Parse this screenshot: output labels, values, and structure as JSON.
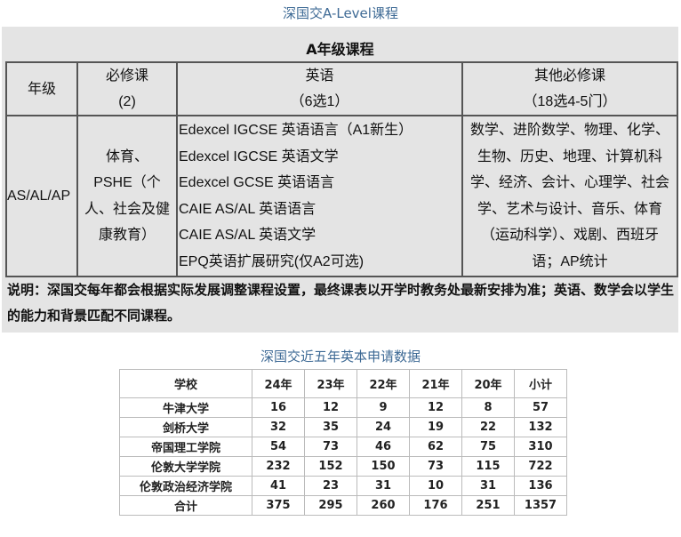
{
  "caption1": "深国交A-Level课程",
  "panel": {
    "title": "A年级课程",
    "headers": [
      {
        "line1": "年级",
        "line2": ""
      },
      {
        "line1": "必修课",
        "line2": "(2)"
      },
      {
        "line1": "英语",
        "line2": "（6选1）"
      },
      {
        "line1": "其他必修课",
        "line2": "（18选4-5门）"
      }
    ],
    "grade": "AS/AL/AP",
    "required": [
      "体育、",
      "PSHE（个",
      "人、社会及健",
      "康教育）"
    ],
    "english": [
      "Edexcel IGCSE 英语语言（A1新生）",
      "Edexcel IGCSE 英语文学",
      "Edexcel GCSE 英语语言",
      "CAIE AS/AL 英语语言",
      "CAIE AS/AL 英语文学",
      "EPQ英语扩展研究(仅A2可选)"
    ],
    "others": [
      "数学、进阶数学、物理、化学、",
      "生物、历史、地理、计算机科",
      "学、经济、会计、心理学、社会",
      "学、艺术与设计、音乐、体育",
      "（运动科学）、戏剧、西班牙",
      "语；AP统计"
    ],
    "note": "说明：深国交每年都会根据实际发展调整课程设置，最终课表以开学时教务处最新安排为准；英语、数学会以学生的能力和背景匹配不同课程。"
  },
  "caption2": "深国交近五年英本申请数据",
  "stats": {
    "headers": [
      "学校",
      "24年",
      "23年",
      "22年",
      "21年",
      "20年",
      "小计"
    ],
    "rows": [
      [
        "牛津大学",
        "16",
        "12",
        "9",
        "12",
        "8",
        "57"
      ],
      [
        "剑桥大学",
        "32",
        "35",
        "24",
        "19",
        "22",
        "132"
      ],
      [
        "帝国理工学院",
        "54",
        "73",
        "46",
        "62",
        "75",
        "310"
      ],
      [
        "伦敦大学学院",
        "232",
        "152",
        "150",
        "73",
        "115",
        "722"
      ],
      [
        "伦敦政治经济学院",
        "41",
        "23",
        "31",
        "10",
        "31",
        "136"
      ],
      [
        "合计",
        "375",
        "295",
        "260",
        "176",
        "251",
        "1357"
      ]
    ]
  }
}
